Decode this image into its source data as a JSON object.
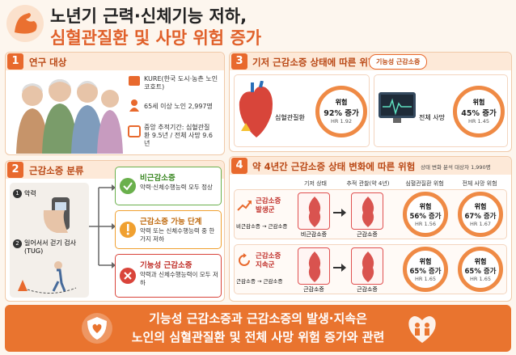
{
  "header": {
    "title_line1": "노년기 근력·신체기능 저하,",
    "title_line2": "심혈관질환 및 사망 위험 증가"
  },
  "study": {
    "number": "1",
    "title": "연구 대상",
    "items": [
      "KURE(한국 도시·농촌 노인 코호트)",
      "65세 이상 노인 2,997명",
      "중앙 추적기간: 심혈관질환 9.5년 / 전체 사망 9.6년"
    ]
  },
  "classification": {
    "number": "2",
    "title": "근감소증 분류",
    "tests": [
      {
        "number": "1",
        "label": "악력"
      },
      {
        "number": "2",
        "label": "일어서서 걷기 검사(TUG)"
      }
    ],
    "groups": [
      {
        "name": "비근감소증",
        "desc": "악력·신체수행능력 모두 정상"
      },
      {
        "name": "근감소증 가능 단계",
        "desc": "악력 또는 신체수행능력 중 한 가지 저하"
      },
      {
        "name": "기능성 근감소증",
        "desc": "악력과 신체수행능력이 모두 저하"
      }
    ]
  },
  "baseline": {
    "number": "3",
    "title": "기저 근감소증 상태에 따른 위험",
    "badge": "기능성 근감소증",
    "outcomes": [
      {
        "label": "심혈관질환",
        "risk": "위험",
        "increase": "92% 증가",
        "hr": "HR 1.92"
      },
      {
        "label": "전체 사망",
        "risk": "위험",
        "increase": "45% 증가",
        "hr": "HR 1.45"
      }
    ]
  },
  "change": {
    "number": "4",
    "title": "약 4년간 근감소증 상태 변화에 따른 위험",
    "sample": "상태 변화 분석 대상자 1,990명",
    "columns": [
      "기저 상태",
      "추적 관찰(약 4년)",
      "심혈관질환 위험",
      "전체 사망 위험"
    ],
    "rows": [
      {
        "group": "근감소증 발생군",
        "transition": "비근감소증 → 근감소증",
        "baseline": "비근감소증",
        "followup": "근감소증",
        "cvd": {
          "risk": "위험",
          "increase": "56% 증가",
          "hr": "HR 1.56"
        },
        "death": {
          "risk": "위험",
          "increase": "67% 증가",
          "hr": "HR 1.67"
        }
      },
      {
        "group": "근감소증 지속군",
        "transition": "근감소증 → 근감소증",
        "baseline": "근감소증",
        "followup": "근감소증",
        "cvd": {
          "risk": "위험",
          "increase": "65% 증가",
          "hr": "HR 1.65"
        },
        "death": {
          "risk": "위험",
          "increase": "65% 증가",
          "hr": "HR 1.65"
        }
      }
    ]
  },
  "footer": {
    "line1": "기능성 근감소증과 근감소증의 발생·지속은",
    "line2": "노인의 심혈관질환 및 전체 사망 위험 증가와 관련"
  }
}
